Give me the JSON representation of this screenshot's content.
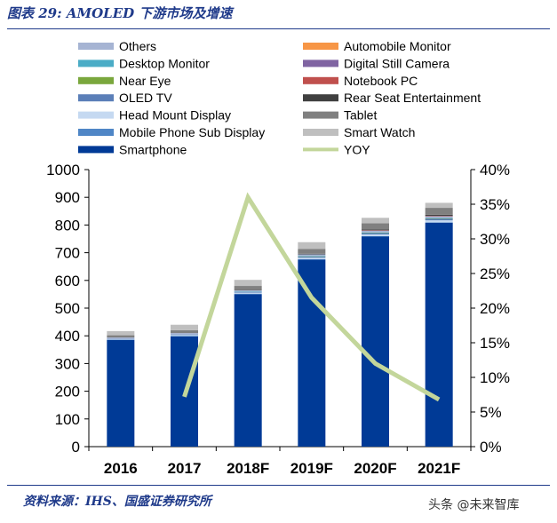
{
  "figure": {
    "title": "图表 29: AMOLED 下游市场及增速",
    "source": "资料来源：IHS、国盛证券研究所",
    "watermark": "头条 @未来智库"
  },
  "chart_data": {
    "type": "bar",
    "stacked": true,
    "categories": [
      "2016",
      "2017",
      "2018F",
      "2019F",
      "2020F",
      "2021F"
    ],
    "ylim": [
      0,
      1000
    ],
    "yticks": [
      0,
      100,
      200,
      300,
      400,
      500,
      600,
      700,
      800,
      900,
      1000
    ],
    "y2lim": [
      0,
      40
    ],
    "y2ticks": [
      "0%",
      "5%",
      "10%",
      "15%",
      "20%",
      "25%",
      "30%",
      "35%",
      "40%"
    ],
    "legend_position": "top",
    "series": [
      {
        "name": "Smartphone",
        "color": "#003a96",
        "values": [
          385,
          398,
          550,
          675,
          758,
          808
        ]
      },
      {
        "name": "Mobile Phone Sub Display",
        "color": "#4f86c6",
        "values": [
          2,
          2,
          2,
          2,
          2,
          2
        ]
      },
      {
        "name": "Head Mount Display",
        "color": "#c5d9f1",
        "values": [
          2,
          3,
          4,
          5,
          6,
          7
        ]
      },
      {
        "name": "OLED TV",
        "color": "#5b7fb8",
        "values": [
          1,
          2,
          3,
          4,
          5,
          6
        ]
      },
      {
        "name": "Near Eye",
        "color": "#7aa73d",
        "values": [
          0,
          0,
          0,
          1,
          1,
          1
        ]
      },
      {
        "name": "Desktop Monitor",
        "color": "#4bacc6",
        "values": [
          0,
          0,
          1,
          1,
          1,
          1
        ]
      },
      {
        "name": "Others",
        "color": "#a6b4d3",
        "values": [
          4,
          5,
          5,
          6,
          7,
          7
        ]
      },
      {
        "name": "Automobile Monitor",
        "color": "#f79646",
        "values": [
          0,
          0,
          0,
          0,
          0,
          0
        ]
      },
      {
        "name": "Digital Still Camera",
        "color": "#8064a2",
        "values": [
          0,
          0,
          0,
          0,
          0,
          0
        ]
      },
      {
        "name": "Notebook PC",
        "color": "#c0504d",
        "values": [
          0,
          0,
          0,
          0,
          1,
          1
        ]
      },
      {
        "name": "Rear Seat Entertainment",
        "color": "#404040",
        "values": [
          0,
          0,
          1,
          2,
          3,
          4
        ]
      },
      {
        "name": "Tablet",
        "color": "#808080",
        "values": [
          8,
          10,
          14,
          18,
          22,
          25
        ]
      },
      {
        "name": "Smart Watch",
        "color": "#bfbfbf",
        "values": [
          15,
          20,
          22,
          24,
          20,
          18
        ]
      }
    ],
    "line_series": {
      "name": "YOY",
      "color": "#c3d69b",
      "axis": "right",
      "values": [
        null,
        7.2,
        36.0,
        21.5,
        12.0,
        6.8
      ]
    },
    "legend": [
      [
        "Others",
        "Automobile Monitor"
      ],
      [
        "Desktop Monitor",
        "Digital Still Camera"
      ],
      [
        "Near Eye",
        "Notebook PC"
      ],
      [
        "OLED TV",
        "Rear Seat Entertainment"
      ],
      [
        "Head Mount Display",
        "Tablet"
      ],
      [
        "Mobile Phone Sub Display",
        "Smart Watch"
      ],
      [
        "Smartphone",
        "YOY"
      ]
    ]
  }
}
